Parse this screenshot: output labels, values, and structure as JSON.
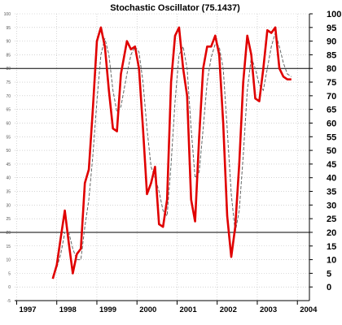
{
  "chart_data": {
    "type": "line",
    "title": "Stochastic Oscillator (75.1437)",
    "ylim": [
      -5,
      100
    ],
    "y_ticks_right": [
      0,
      5,
      10,
      15,
      20,
      25,
      30,
      35,
      40,
      45,
      50,
      55,
      60,
      65,
      70,
      75,
      80,
      85,
      90,
      95,
      100
    ],
    "y_ticks_left": [
      -5,
      0,
      5,
      10,
      15,
      20,
      25,
      30,
      35,
      40,
      45,
      50,
      55,
      60,
      65,
      70,
      75,
      80,
      85,
      90,
      95,
      100
    ],
    "x_ticks": [
      "1997",
      "1998",
      "1999",
      "2000",
      "2001",
      "2002",
      "2003",
      "2004"
    ],
    "x_tick_positions": [
      1997,
      1998,
      1999,
      2000,
      2001,
      2002,
      2003,
      2004
    ],
    "xlim": [
      1996.95,
      2004.3
    ],
    "reference_lines": [
      80,
      20
    ],
    "grid": true,
    "colors": {
      "series_main": "#e00000",
      "series_signal": "#666666",
      "reference": "#000000",
      "grid": "#bbbbbb"
    },
    "series": [
      {
        "role": "main",
        "x": [
          1997.9,
          1998.0,
          1998.1,
          1998.2,
          1998.3,
          1998.4,
          1998.5,
          1998.6,
          1998.7,
          1998.8,
          1998.9,
          1999.0,
          1999.1,
          1999.2,
          1999.3,
          1999.4,
          1999.5,
          1999.6,
          1999.75,
          1999.85,
          1999.95,
          2000.05,
          2000.15,
          2000.25,
          2000.35,
          2000.45,
          2000.55,
          2000.65,
          2000.75,
          2000.85,
          2000.95,
          2001.05,
          2001.15,
          2001.25,
          2001.35,
          2001.45,
          2001.55,
          2001.65,
          2001.75,
          2001.85,
          2001.95,
          2002.05,
          2002.15,
          2002.25,
          2002.35,
          2002.45,
          2002.55,
          2002.65,
          2002.75,
          2002.85,
          2002.95,
          2003.05,
          2003.15,
          2003.25,
          2003.35,
          2003.45,
          2003.55,
          2003.65,
          2003.75,
          2003.85
        ],
        "y": [
          3,
          8,
          18,
          28,
          16,
          5,
          12,
          14,
          38,
          43,
          65,
          90,
          95,
          88,
          72,
          58,
          57,
          78,
          90,
          87,
          88,
          80,
          58,
          34,
          38,
          44,
          23,
          22,
          32,
          75,
          92,
          95,
          80,
          70,
          32,
          24,
          55,
          80,
          88,
          88,
          92,
          85,
          60,
          26,
          11,
          22,
          45,
          75,
          92,
          85,
          69,
          68,
          80,
          94,
          93,
          95,
          80,
          77,
          76,
          76
        ]
      },
      {
        "role": "signal",
        "x": [
          1997.9,
          1998.0,
          1998.1,
          1998.2,
          1998.3,
          1998.4,
          1998.5,
          1998.6,
          1998.7,
          1998.8,
          1998.9,
          1999.0,
          1999.1,
          1999.2,
          1999.3,
          1999.4,
          1999.5,
          1999.6,
          1999.75,
          1999.85,
          1999.95,
          2000.05,
          2000.15,
          2000.25,
          2000.35,
          2000.45,
          2000.55,
          2000.65,
          2000.75,
          2000.85,
          2000.95,
          2001.05,
          2001.15,
          2001.25,
          2001.35,
          2001.45,
          2001.55,
          2001.65,
          2001.75,
          2001.85,
          2001.95,
          2002.05,
          2002.15,
          2002.25,
          2002.35,
          2002.45,
          2002.55,
          2002.65,
          2002.75,
          2002.85,
          2002.95,
          2003.05,
          2003.15,
          2003.25,
          2003.35,
          2003.45,
          2003.55,
          2003.65,
          2003.75,
          2003.85
        ],
        "y": [
          4,
          7,
          12,
          20,
          20,
          14,
          10,
          10,
          22,
          32,
          48,
          68,
          85,
          91,
          85,
          72,
          64,
          66,
          78,
          85,
          88,
          86,
          75,
          58,
          44,
          40,
          35,
          28,
          26,
          45,
          68,
          85,
          88,
          80,
          58,
          40,
          42,
          58,
          75,
          84,
          89,
          88,
          80,
          58,
          34,
          20,
          28,
          48,
          72,
          84,
          80,
          74,
          72,
          80,
          88,
          93,
          88,
          82,
          78,
          77
        ]
      }
    ]
  }
}
